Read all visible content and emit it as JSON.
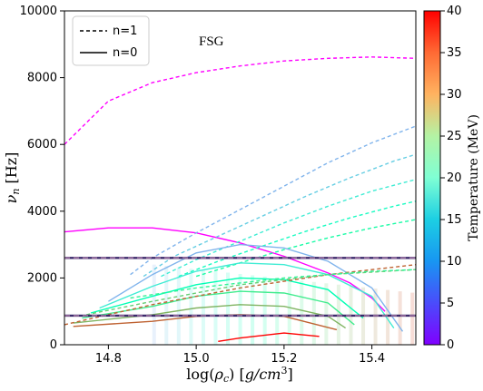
{
  "chart_data": {
    "type": "line",
    "xlabel": "log(ρ_c) [g/cm³]",
    "ylabel": "ν_n [Hz]",
    "xlim": [
      14.7,
      15.5
    ],
    "ylim": [
      0,
      10000
    ],
    "xticks": [
      "14.8",
      "15.0",
      "15.2",
      "15.4"
    ],
    "yticks": [
      "0",
      "2000",
      "4000",
      "6000",
      "8000",
      "10000"
    ],
    "annotation": "FSG",
    "legend": {
      "position": "top-left",
      "entries": [
        {
          "label": "n=1",
          "style": "dashed"
        },
        {
          "label": "n=0",
          "style": "solid"
        }
      ]
    },
    "colorbar": {
      "label": "Temperature (MeV)",
      "range": [
        0,
        40
      ],
      "ticks": [
        "0",
        "5",
        "10",
        "15",
        "20",
        "25",
        "30",
        "35",
        "40"
      ],
      "colormap": "rainbow"
    },
    "horizontal_lines": [
      {
        "y": 2600,
        "style": "dashed",
        "color": "#9b6fa0"
      },
      {
        "y": 870,
        "style": "dashed",
        "color": "#9b6fa0"
      }
    ],
    "series": [
      {
        "mode": "n=1",
        "temperature": 0,
        "x": [
          14.7,
          14.8,
          14.9,
          15.0,
          15.1,
          15.2,
          15.3,
          15.4,
          15.5
        ],
        "y": [
          6000,
          7300,
          7850,
          8150,
          8350,
          8500,
          8580,
          8620,
          8580
        ]
      },
      {
        "mode": "n=0",
        "temperature": 0,
        "x": [
          14.7,
          14.8,
          14.9,
          15.0,
          15.1,
          15.2,
          15.3,
          15.35,
          15.4,
          15.43
        ],
        "y": [
          3380,
          3500,
          3500,
          3350,
          3050,
          2650,
          2150,
          1850,
          1400,
          1000
        ]
      },
      {
        "mode": "n=1",
        "temperature": 10,
        "x": [
          14.85,
          14.9,
          15.0,
          15.1,
          15.2,
          15.3,
          15.4,
          15.5
        ],
        "y": [
          2100,
          2600,
          3350,
          4050,
          4750,
          5450,
          6050,
          6550
        ]
      },
      {
        "mode": "n=1",
        "temperature": 12,
        "x": [
          14.88,
          14.95,
          15.05,
          15.15,
          15.25,
          15.35,
          15.45,
          15.5
        ],
        "y": [
          2050,
          2650,
          3250,
          3850,
          4450,
          5000,
          5500,
          5700
        ]
      },
      {
        "mode": "n=1",
        "temperature": 15,
        "x": [
          14.92,
          15.0,
          15.1,
          15.2,
          15.3,
          15.4,
          15.5
        ],
        "y": [
          2050,
          2550,
          3100,
          3650,
          4150,
          4600,
          4950
        ]
      },
      {
        "mode": "n=1",
        "temperature": 18,
        "x": [
          14.96,
          15.05,
          15.15,
          15.25,
          15.35,
          15.45,
          15.5
        ],
        "y": [
          2050,
          2500,
          2950,
          3400,
          3800,
          4150,
          4300
        ]
      },
      {
        "mode": "n=1",
        "temperature": 22,
        "x": [
          15.0,
          15.1,
          15.2,
          15.3,
          15.4,
          15.5
        ],
        "y": [
          2050,
          2450,
          2850,
          3200,
          3500,
          3750
        ]
      },
      {
        "mode": "n=0",
        "temperature": 10,
        "x": [
          14.8,
          14.9,
          15.0,
          15.1,
          15.2,
          15.3,
          15.4,
          15.47
        ],
        "y": [
          1300,
          2100,
          2750,
          3000,
          2900,
          2500,
          1700,
          400
        ]
      },
      {
        "mode": "n=0",
        "temperature": 15,
        "x": [
          14.78,
          14.9,
          15.0,
          15.1,
          15.2,
          15.3,
          15.4,
          15.45
        ],
        "y": [
          1100,
          1750,
          2200,
          2450,
          2400,
          2100,
          1450,
          500
        ]
      },
      {
        "mode": "n=0",
        "temperature": 20,
        "x": [
          14.76,
          14.9,
          15.0,
          15.1,
          15.2,
          15.3,
          15.38
        ],
        "y": [
          950,
          1450,
          1800,
          2000,
          1950,
          1650,
          800
        ]
      },
      {
        "mode": "n=0",
        "temperature": 25,
        "x": [
          14.74,
          14.9,
          15.0,
          15.1,
          15.2,
          15.3,
          15.36
        ],
        "y": [
          800,
          1150,
          1450,
          1600,
          1550,
          1250,
          600
        ]
      },
      {
        "mode": "n=0",
        "temperature": 30,
        "x": [
          14.72,
          14.9,
          15.0,
          15.1,
          15.2,
          15.3,
          15.34
        ],
        "y": [
          650,
          900,
          1100,
          1200,
          1150,
          850,
          500
        ]
      },
      {
        "mode": "n=0",
        "temperature": 35,
        "x": [
          14.72,
          14.9,
          15.0,
          15.1,
          15.2,
          15.32
        ],
        "y": [
          550,
          700,
          850,
          900,
          850,
          450
        ]
      },
      {
        "mode": "n=0",
        "temperature": 40,
        "x": [
          15.05,
          15.1,
          15.2,
          15.28
        ],
        "y": [
          100,
          200,
          350,
          250
        ]
      },
      {
        "mode": "n=1",
        "temperature": 35,
        "x": [
          14.7,
          14.9,
          15.1,
          15.3,
          15.5
        ],
        "y": [
          600,
          1200,
          1700,
          2100,
          2400
        ]
      },
      {
        "mode": "n=1",
        "temperature": 28,
        "x": [
          14.75,
          14.9,
          15.1,
          15.3,
          15.5
        ],
        "y": [
          900,
          1300,
          1800,
          2100,
          2250
        ]
      },
      {
        "mode": "n=1",
        "temperature": 24,
        "x": [
          14.85,
          15.0,
          15.2,
          15.4,
          15.5
        ],
        "y": [
          1400,
          1700,
          2000,
          2200,
          2250
        ]
      }
    ]
  }
}
